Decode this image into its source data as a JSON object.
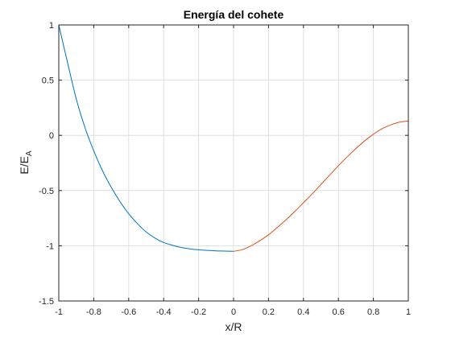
{
  "chart_data": {
    "type": "line",
    "title": "Energía del cohete",
    "xlabel": "x/R",
    "ylabel": {
      "main": "E/E",
      "sub": "A"
    },
    "xlim": [
      -1,
      1
    ],
    "ylim": [
      -1.5,
      1
    ],
    "xticks": [
      -1,
      -0.8,
      -0.6,
      -0.4,
      -0.2,
      0,
      0.2,
      0.4,
      0.6,
      0.8,
      1
    ],
    "yticks": [
      -1.5,
      -1,
      -0.5,
      0,
      0.5,
      1
    ],
    "grid": true,
    "series": [
      {
        "color": "#0072BD",
        "x": [
          -1,
          -0.95,
          -0.9,
          -0.85,
          -0.8,
          -0.75,
          -0.7,
          -0.65,
          -0.6,
          -0.55,
          -0.5,
          -0.45,
          -0.4,
          -0.35,
          -0.3,
          -0.25,
          -0.2,
          -0.15,
          -0.1,
          -0.05,
          0
        ],
        "y": [
          1.0,
          0.66,
          0.33,
          0.07,
          -0.14,
          -0.32,
          -0.47,
          -0.6,
          -0.71,
          -0.8,
          -0.875,
          -0.93,
          -0.97,
          -0.995,
          -1.015,
          -1.028,
          -1.036,
          -1.042,
          -1.046,
          -1.048,
          -1.05
        ]
      },
      {
        "color": "#D95319",
        "x": [
          0,
          0.05,
          0.1,
          0.15,
          0.2,
          0.25,
          0.3,
          0.35,
          0.4,
          0.45,
          0.5,
          0.55,
          0.6,
          0.65,
          0.7,
          0.75,
          0.8,
          0.85,
          0.9,
          0.95,
          1
        ],
        "y": [
          -1.05,
          -1.035,
          -1.0,
          -0.955,
          -0.9,
          -0.835,
          -0.765,
          -0.69,
          -0.61,
          -0.53,
          -0.445,
          -0.36,
          -0.275,
          -0.195,
          -0.12,
          -0.05,
          0.01,
          0.06,
          0.095,
          0.12,
          0.13
        ]
      }
    ]
  }
}
